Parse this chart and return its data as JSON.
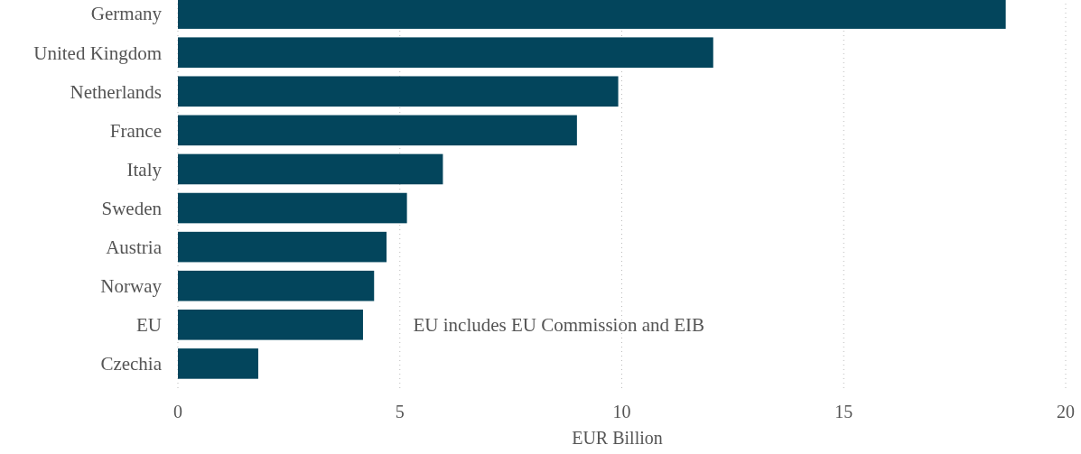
{
  "chart_data": {
    "type": "bar",
    "orientation": "horizontal",
    "xlabel": "EUR Billion",
    "categories": [
      "Germany",
      "United Kingdom",
      "Netherlands",
      "France",
      "Italy",
      "Sweden",
      "Austria",
      "Norway",
      "EU",
      "Czechia"
    ],
    "values": [
      18.65,
      12.06,
      9.92,
      8.99,
      5.97,
      5.16,
      4.7,
      4.42,
      4.17,
      1.81
    ],
    "color": "#03455c",
    "xlim": [
      0,
      20
    ],
    "xticks": [
      0,
      5,
      10,
      15,
      20
    ],
    "grid": "x",
    "annotations": [
      "EU includes EU Commission and EIB"
    ]
  }
}
